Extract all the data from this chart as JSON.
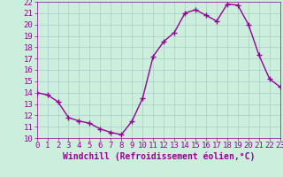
{
  "x": [
    0,
    1,
    2,
    3,
    4,
    5,
    6,
    7,
    8,
    9,
    10,
    11,
    12,
    13,
    14,
    15,
    16,
    17,
    18,
    19,
    20,
    21,
    22,
    23
  ],
  "y": [
    14.0,
    13.8,
    13.2,
    11.8,
    11.5,
    11.3,
    10.8,
    10.5,
    10.3,
    11.5,
    13.5,
    17.2,
    18.5,
    19.3,
    21.0,
    21.3,
    20.8,
    20.3,
    21.8,
    21.7,
    20.0,
    17.3,
    15.2,
    14.5
  ],
  "line_color": "#990099",
  "marker": "+",
  "marker_size": 4,
  "linewidth": 1.0,
  "bg_color": "#cceedd",
  "grid_color": "#aacccc",
  "xlabel": "Windchill (Refroidissement éolien,°C)",
  "xlabel_color": "#990099",
  "tick_color": "#990099",
  "xlim": [
    0,
    23
  ],
  "ylim": [
    10,
    22
  ],
  "yticks": [
    10,
    11,
    12,
    13,
    14,
    15,
    16,
    17,
    18,
    19,
    20,
    21,
    22
  ],
  "xticks": [
    0,
    1,
    2,
    3,
    4,
    5,
    6,
    7,
    8,
    9,
    10,
    11,
    12,
    13,
    14,
    15,
    16,
    17,
    18,
    19,
    20,
    21,
    22,
    23
  ],
  "tick_fontsize": 6.5,
  "xlabel_fontsize": 7
}
